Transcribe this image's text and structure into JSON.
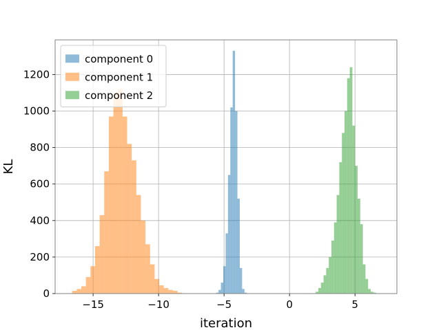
{
  "chart_data": {
    "type": "bar",
    "title": "",
    "xlabel": "iteration",
    "ylabel": "KL",
    "xlim": [
      -17.9,
      8.2
    ],
    "ylim": [
      0,
      1390
    ],
    "xticks": [
      -15,
      -10,
      -5,
      0,
      5
    ],
    "xtick_labels": [
      "−15",
      "−10",
      "−5",
      "0",
      "5"
    ],
    "yticks": [
      0,
      200,
      400,
      600,
      800,
      1000,
      1200
    ],
    "ytick_labels": [
      "0",
      "200",
      "400",
      "600",
      "800",
      "1000",
      "1200"
    ],
    "grid": true,
    "legend_position": "upper left",
    "bar_alpha": 0.5,
    "series": [
      {
        "name": "component 0",
        "color": "#1f77b4",
        "bin_width": 0.18,
        "bin_starts": [
          -5.6,
          -5.42,
          -5.24,
          -5.06,
          -4.88,
          -4.7,
          -4.52,
          -4.34,
          -4.16,
          -3.98,
          -3.8,
          -3.62,
          -3.44
        ],
        "counts": [
          5,
          20,
          60,
          150,
          330,
          650,
          1020,
          1330,
          1000,
          520,
          140,
          25,
          5
        ]
      },
      {
        "name": "component 1",
        "color": "#ff7f0e",
        "bin_width": 0.35,
        "bin_starts": [
          -16.95,
          -16.6,
          -16.25,
          -15.9,
          -15.55,
          -15.2,
          -14.85,
          -14.5,
          -14.15,
          -13.8,
          -13.45,
          -13.1,
          -12.75,
          -12.4,
          -12.05,
          -11.7,
          -11.35,
          -11.0,
          -10.65,
          -10.3,
          -9.95,
          -9.6,
          -9.25,
          -8.9,
          -8.55
        ],
        "counts": [
          2,
          15,
          25,
          40,
          90,
          150,
          260,
          430,
          670,
          970,
          1100,
          1120,
          970,
          820,
          730,
          540,
          400,
          270,
          160,
          80,
          45,
          30,
          20,
          15,
          5
        ]
      },
      {
        "name": "component 2",
        "color": "#2ca02c",
        "bin_width": 0.2,
        "bin_starts": [
          1.8,
          2.0,
          2.2,
          2.4,
          2.6,
          2.8,
          3.0,
          3.2,
          3.4,
          3.6,
          3.8,
          4.0,
          4.2,
          4.4,
          4.6,
          4.8,
          5.0,
          5.2,
          5.4,
          5.6,
          5.8,
          6.0,
          6.2,
          6.4,
          6.6
        ],
        "counts": [
          2,
          10,
          30,
          60,
          100,
          140,
          200,
          290,
          390,
          540,
          720,
          880,
          1000,
          1180,
          1240,
          920,
          700,
          520,
          380,
          160,
          80,
          25,
          10,
          5,
          2
        ]
      }
    ]
  }
}
